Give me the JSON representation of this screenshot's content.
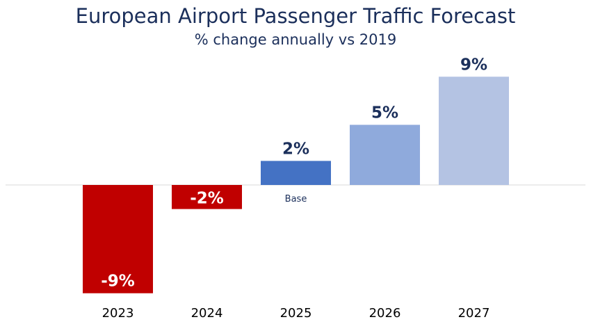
{
  "chart_data": {
    "type": "bar",
    "title": "European Airport Passenger Traffic Forecast",
    "subtitle": "% change annually vs 2019",
    "categories": [
      "2023",
      "2024",
      "2025",
      "2026",
      "2027"
    ],
    "values": [
      -9,
      -2,
      2,
      5,
      9
    ],
    "data_labels": [
      "-9%",
      "-2%",
      "2%",
      "5%",
      "9%"
    ],
    "annotations": [
      {
        "category": "2025",
        "text": "Base"
      }
    ],
    "colors": [
      "#c00000",
      "#c00000",
      "#4472c4",
      "#8faadc",
      "#b4c3e3"
    ],
    "label_colors": [
      "#ffffff",
      "#ffffff",
      "#1b2f5b",
      "#1b2f5b",
      "#1b2f5b"
    ],
    "ylim": [
      -9,
      9
    ],
    "grid": false,
    "legend": "none"
  }
}
